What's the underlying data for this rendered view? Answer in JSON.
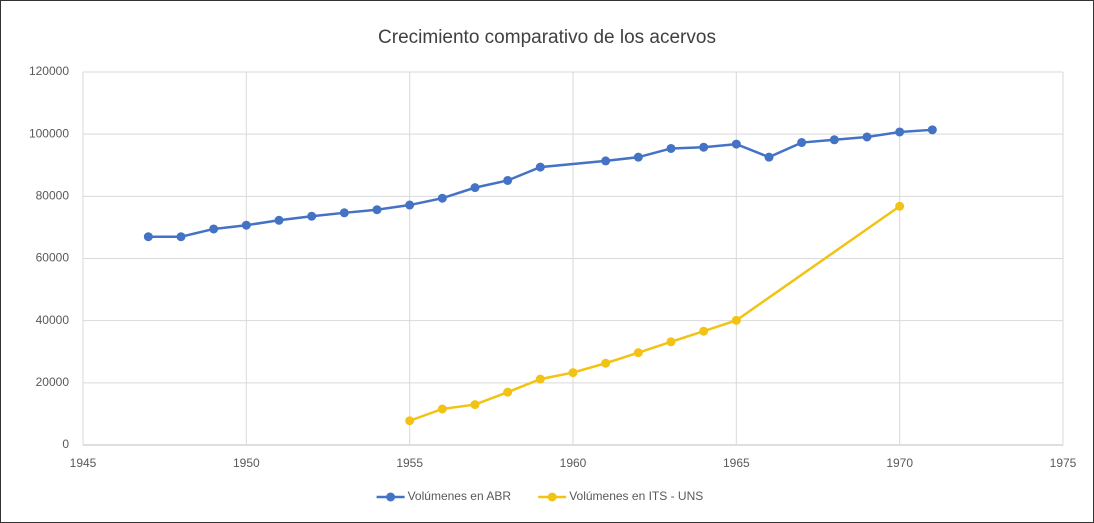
{
  "chart_data": {
    "type": "line",
    "title": "Crecimiento comparativo de los acervos",
    "series": [
      {
        "name": "Volúmenes en ABR",
        "color": "#4472c4",
        "x": [
          1947,
          1948,
          1949,
          1950,
          1951,
          1952,
          1953,
          1954,
          1955,
          1956,
          1957,
          1958,
          1959,
          1961,
          1962,
          1963,
          1964,
          1965,
          1966,
          1967,
          1968,
          1969,
          1970,
          1971
        ],
        "values": [
          67000,
          67000,
          69500,
          70700,
          72300,
          73600,
          74700,
          75700,
          77200,
          79400,
          82800,
          85100,
          89400,
          91400,
          92600,
          95400,
          95800,
          96800,
          92600,
          97300,
          98200,
          99100,
          100700,
          101400
        ]
      },
      {
        "name": "Volúmenes en ITS - UNS",
        "color": "#f2c314",
        "x": [
          1955,
          1956,
          1957,
          1958,
          1959,
          1960,
          1961,
          1962,
          1963,
          1964,
          1965,
          1970
        ],
        "values": [
          7800,
          11600,
          13000,
          17000,
          21200,
          23300,
          26300,
          29700,
          33200,
          36600,
          40100,
          76800
        ]
      }
    ],
    "xlim": [
      1945,
      1975
    ],
    "xticks": [
      1945,
      1950,
      1955,
      1960,
      1965,
      1970,
      1975
    ],
    "ylim": [
      0,
      120000
    ],
    "yticks": [
      0,
      20000,
      40000,
      60000,
      80000,
      100000,
      120000
    ],
    "grid": true,
    "legend": "bottom"
  }
}
